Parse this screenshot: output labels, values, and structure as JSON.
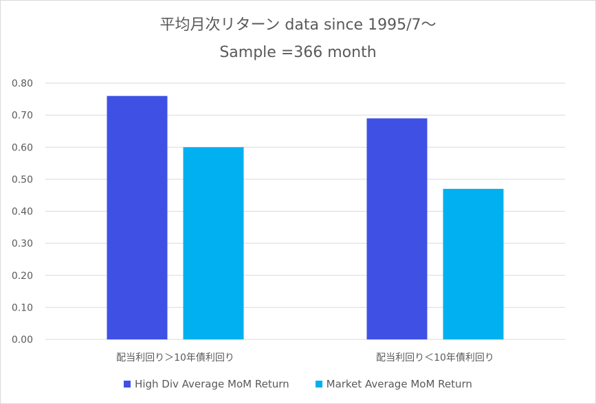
{
  "chart_data": {
    "type": "bar",
    "title": "平均月次リターン data since 1995/7～",
    "subtitle": "Sample =366 month",
    "categories": [
      "配当利回り＞10年債利回り",
      "配当利回り＜10年債利回り"
    ],
    "series": [
      {
        "name": "High Div Average MoM Return",
        "color": "#3F51E5",
        "values": [
          0.76,
          0.69
        ]
      },
      {
        "name": "Market Average MoM Return",
        "color": "#00B0F0",
        "values": [
          0.6,
          0.47
        ]
      }
    ],
    "ylim": [
      0,
      0.8
    ],
    "yticks": [
      "0.00",
      "0.10",
      "0.20",
      "0.30",
      "0.40",
      "0.50",
      "0.60",
      "0.70",
      "0.80"
    ],
    "grid": true,
    "legend_position": "bottom"
  }
}
